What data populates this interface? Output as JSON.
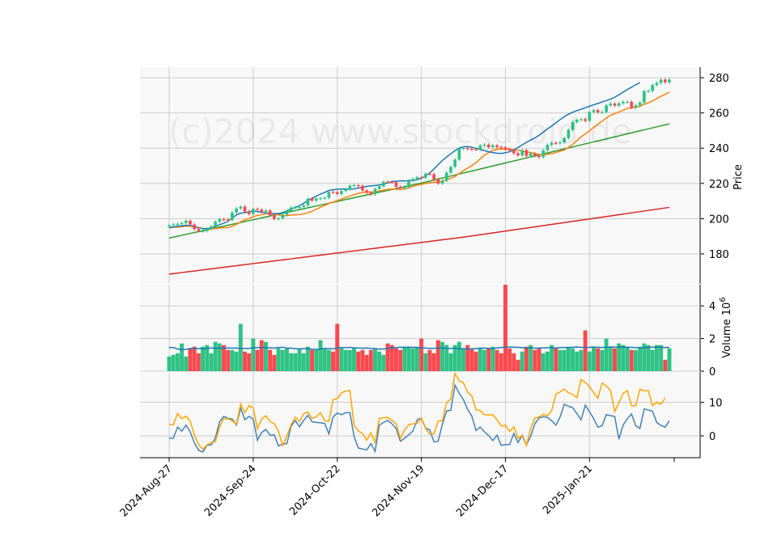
{
  "watermark": "(c)2024 www.stockdroid.de",
  "colors": {
    "up": "#2fc385",
    "down": "#f94a4f",
    "ma_fast": "#1f77b4",
    "ma_mid": "#ff7f0e",
    "ma_slow": "#2ca02c",
    "ma_long": "#d62728",
    "vol_ma": "#1f77b4",
    "osc_fast": "#4682b4",
    "osc_slow": "#ffa500",
    "panel_bg": "#f8f8f8",
    "grid": "#cccccc"
  },
  "chart_data": [
    {
      "type": "candlestick",
      "panel": "price",
      "ylabel": "Price",
      "ylim": [
        163,
        286
      ],
      "yticks": [
        180,
        200,
        220,
        240,
        260,
        280
      ],
      "x_ticklabels": [
        {
          "index": 0,
          "label": "2024-Aug-27"
        },
        {
          "index": 20,
          "label": "2024-Sep-24"
        },
        {
          "index": 40,
          "label": "2024-Oct-22"
        },
        {
          "index": 60,
          "label": "2024-Nov-19"
        },
        {
          "index": 80,
          "label": "2024-Dec-17"
        },
        {
          "index": 100,
          "label": "2025-Jan-21"
        }
      ],
      "num_bars": 120,
      "closes": [
        196.3,
        196.8,
        197.0,
        197.5,
        198.8,
        196.7,
        194.1,
        193.0,
        193.0,
        194.2,
        195.6,
        198.3,
        199.7,
        199.5,
        199.3,
        203.5,
        205.8,
        206.8,
        204.1,
        202.6,
        205.6,
        205.1,
        204.0,
        204.7,
        201.9,
        199.8,
        200.2,
        202.2,
        204.3,
        206.3,
        206.4,
        206.6,
        207.5,
        211.4,
        210.2,
        211.4,
        211.6,
        211.9,
        215.1,
        215.0,
        214.0,
        215.7,
        216.6,
        218.7,
        219.0,
        218.6,
        216.0,
        214.8,
        213.8,
        216.9,
        218.4,
        220.9,
        220.8,
        220.7,
        218.1,
        217.3,
        217.9,
        221.5,
        222.5,
        223.5,
        223.2,
        225.5,
        225.2,
        222.3,
        220.0,
        221.5,
        226.1,
        229.4,
        233.5,
        239.8,
        240.1,
        239.5,
        239.4,
        239.2,
        241.5,
        242.0,
        240.6,
        241.6,
        240.6,
        240.5,
        239.6,
        238.7,
        237.1,
        235.9,
        238.8,
        235.6,
        237.0,
        235.8,
        234.9,
        238.8,
        241.8,
        243.0,
        242.8,
        243.3,
        245.7,
        250.4,
        254.8,
        256.1,
        256.5,
        255.5,
        260.5,
        261.6,
        260.3,
        260.5,
        264.3,
        265.3,
        264.1,
        265.5,
        266.3,
        266.3,
        263.0,
        264.3,
        265.9,
        272.4,
        272.5,
        275.8,
        277.0,
        278.9,
        277.4,
        278.9
      ],
      "series": [
        {
          "name": "",
          "key": "ma_fast",
          "values": [
            194.9,
            195.3,
            195.7,
            196.0,
            196.2,
            196.1,
            195.5,
            194.9,
            194.4,
            194.3,
            194.7,
            195.5,
            196.6,
            197.4,
            198.5,
            200.4,
            202.1,
            203.1,
            203.4,
            203.9,
            204.4,
            204.0,
            203.7,
            203.3,
            203.0,
            202.8,
            202.9,
            203.4,
            204.4,
            205.5,
            206.4,
            207.4,
            208.7,
            210.3,
            211.5,
            212.8,
            213.9,
            214.9,
            216.0,
            216.4,
            216.7,
            216.8,
            216.8,
            216.7,
            216.9,
            217.4,
            217.8,
            218.3,
            218.6,
            218.8,
            219.1,
            219.6,
            220.3,
            221.0,
            221.3,
            221.4,
            221.4,
            221.6,
            221.7,
            222.1,
            222.9,
            224.3,
            226.0,
            228.2,
            230.7,
            233.0,
            235.0,
            236.8,
            238.6,
            240.1,
            240.8,
            240.9,
            240.5,
            239.9,
            239.3,
            238.6,
            238.0,
            237.5,
            237.1,
            237.0,
            237.4,
            238.0,
            239.0,
            240.4,
            241.9,
            243.3,
            244.6,
            245.8,
            247.3,
            249.1,
            250.9,
            252.6,
            254.4,
            256.2,
            257.9,
            259.3,
            260.4,
            261.3,
            262.1,
            262.9,
            263.8,
            264.6,
            265.4,
            266.2,
            267.0,
            267.9,
            268.9,
            270.3,
            271.8,
            273.3,
            274.6,
            276.0,
            277.2
          ]
        }
      ]
    },
    {
      "type": "bar",
      "panel": "volume",
      "ylabel": "Volume  10^6",
      "ylim": [
        0,
        5.3
      ],
      "yticks": [
        0,
        2,
        4
      ],
      "values": [
        0.9,
        1.0,
        1.1,
        1.7,
        0.9,
        1.4,
        1.5,
        1.1,
        1.5,
        1.6,
        1.1,
        1.8,
        1.7,
        1.6,
        1.3,
        1.3,
        1.2,
        2.9,
        1.2,
        1.1,
        2.0,
        1.3,
        1.9,
        1.8,
        1.3,
        1.0,
        1.4,
        1.3,
        1.4,
        1.1,
        1.1,
        1.4,
        1.1,
        1.5,
        1.3,
        1.3,
        1.9,
        1.4,
        1.3,
        1.2,
        2.9,
        1.4,
        1.3,
        1.3,
        1.4,
        1.2,
        1.3,
        1.0,
        1.3,
        1.4,
        1.2,
        1.0,
        1.7,
        1.6,
        1.4,
        1.3,
        1.5,
        1.5,
        1.4,
        1.5,
        2.0,
        1.1,
        1.3,
        1.1,
        1.9,
        1.8,
        1.6,
        1.1,
        1.6,
        1.8,
        1.4,
        1.6,
        1.4,
        1.2,
        1.4,
        1.3,
        1.4,
        1.5,
        1.3,
        1.1,
        5.3,
        1.4,
        1.1,
        0.7,
        1.2,
        1.5,
        1.6,
        1.3,
        1.4,
        1.1,
        1.2,
        1.6,
        1.4,
        1.3,
        1.3,
        1.5,
        1.4,
        1.2,
        1.3,
        2.5,
        1.2,
        1.5,
        1.4,
        1.3,
        2.0,
        1.5,
        1.4,
        1.7,
        1.6,
        1.5,
        1.3,
        1.3,
        1.5,
        1.7,
        1.6,
        1.3,
        1.6,
        1.6,
        0.7,
        1.4
      ],
      "ma_values": [
        1.45,
        1.45,
        1.36,
        1.32,
        1.33,
        1.39,
        1.4,
        1.38,
        1.38,
        1.4,
        1.42,
        1.42,
        1.42,
        1.41,
        1.42,
        1.42,
        1.41,
        1.4,
        1.39,
        1.4,
        1.43,
        1.44,
        1.46,
        1.44,
        1.43,
        1.42,
        1.45,
        1.47,
        1.41,
        1.41,
        1.38,
        1.36,
        1.38,
        1.38,
        1.35,
        1.33,
        1.36,
        1.39,
        1.38,
        1.37,
        1.43,
        1.44,
        1.45,
        1.46,
        1.43,
        1.42,
        1.41,
        1.42,
        1.4,
        1.38,
        1.35,
        1.36,
        1.4,
        1.43,
        1.44,
        1.47,
        1.46,
        1.46,
        1.47,
        1.45,
        1.43,
        1.42,
        1.4,
        1.4,
        1.43,
        1.42,
        1.4,
        1.39,
        1.41,
        1.39,
        1.38,
        1.36,
        1.37,
        1.39,
        1.41,
        1.41,
        1.4,
        1.4,
        1.42,
        1.45,
        1.48,
        1.48,
        1.47,
        1.46,
        1.44,
        1.42,
        1.43,
        1.41,
        1.42,
        1.43,
        1.43,
        1.43,
        1.42,
        1.45,
        1.45,
        1.45,
        1.47,
        1.48,
        1.46,
        1.45,
        1.46,
        1.48,
        1.47,
        1.45,
        1.47,
        1.48,
        1.48,
        1.47,
        1.48,
        1.47,
        1.46,
        1.44,
        1.43,
        1.44,
        1.46,
        1.47,
        1.48,
        1.47,
        1.45,
        1.46
      ]
    },
    {
      "type": "line",
      "panel": "oscillator",
      "ylim": [
        -6.5,
        19
      ],
      "yticks": [
        0,
        10
      ],
      "series": [
        {
          "name": "",
          "key": "osc_fast",
          "values": [
            -0.7,
            -0.7,
            2.6,
            1.4,
            3.2,
            1.2,
            -2.1,
            -4.3,
            -4.8,
            -2.8,
            -2.7,
            -0.6,
            4.2,
            5.8,
            5.2,
            5.0,
            3.2,
            8.3,
            4.8,
            5.8,
            5.0,
            -1.3,
            1.0,
            1.9,
            0.2,
            0.3,
            -3.0,
            -2.4,
            -2.3,
            2.8,
            4.6,
            2.7,
            4.6,
            6.1,
            4.2,
            4.0,
            3.9,
            3.7,
            0.6,
            5.6,
            6.8,
            6.3,
            6.9,
            6.9,
            -0.2,
            -3.6,
            -3.9,
            -4.2,
            -2.3,
            -4.6,
            3.2,
            4.0,
            4.6,
            3.6,
            2.2,
            -1.6,
            -0.7,
            0.3,
            1.5,
            4.8,
            5.3,
            2.3,
            1.8,
            -1.8,
            -1.6,
            3.5,
            7.4,
            7.6,
            15.1,
            12.7,
            10.8,
            7.9,
            5.9,
            1.6,
            2.6,
            1.2,
            0.1,
            -1.4,
            0.2,
            -2.8,
            -2.6,
            -2.6,
            0.7,
            -2.0,
            0.2,
            -2.6,
            -0.2,
            3.6,
            5.3,
            5.7,
            5.5,
            4.5,
            3.2,
            5.6,
            9.4,
            8.8,
            8.4,
            6.6,
            4.8,
            9.1,
            7.2,
            5.1,
            2.6,
            3.0,
            6.3,
            6.0,
            5.8,
            -1.0,
            3.2,
            5.1,
            6.5,
            3.0,
            2.2,
            8.0,
            7.7,
            7.3,
            4.0,
            3.1,
            2.6,
            4.5
          ]
        },
        {
          "name": "",
          "key": "osc_slow",
          "values": [
            3.4,
            3.3,
            6.7,
            5.1,
            5.9,
            4.4,
            0.3,
            -2.6,
            -4.0,
            -2.7,
            -2.0,
            -1.7,
            2.7,
            5.1,
            5.1,
            4.5,
            3.4,
            9.5,
            6.9,
            9.0,
            8.3,
            2.1,
            5.0,
            6.0,
            4.3,
            3.6,
            1.4,
            -2.9,
            0.0,
            3.3,
            5.6,
            4.3,
            6.6,
            7.1,
            5.2,
            5.7,
            6.9,
            4.6,
            4.3,
            10.8,
            11.1,
            12.8,
            13.3,
            13.5,
            3.2,
            1.5,
            0.7,
            -1.3,
            0.9,
            -2.0,
            5.2,
            5.4,
            5.5,
            4.6,
            3.6,
            -0.8,
            1.8,
            3.3,
            3.6,
            3.7,
            5.3,
            2.2,
            0.5,
            0.7,
            4.4,
            4.5,
            9.9,
            11.0,
            18.6,
            16.4,
            15.8,
            13.0,
            11.9,
            7.8,
            7.5,
            6.3,
            6.2,
            6.3,
            4.8,
            2.9,
            3.2,
            1.3,
            2.7,
            -0.7,
            0.1,
            -2.9,
            2.2,
            5.3,
            5.6,
            6.4,
            6.0,
            7.5,
            12.4,
            13.1,
            13.9,
            12.8,
            12.3,
            11.4,
            16.7,
            15.9,
            14.7,
            12.8,
            11.2,
            15.7,
            14.9,
            13.5,
            7.3,
            9.8,
            12.6,
            13.5,
            9.0,
            8.9,
            13.9,
            13.4,
            13.4,
            9.0,
            10.0,
            9.4,
            11.3
          ]
        }
      ]
    }
  ]
}
